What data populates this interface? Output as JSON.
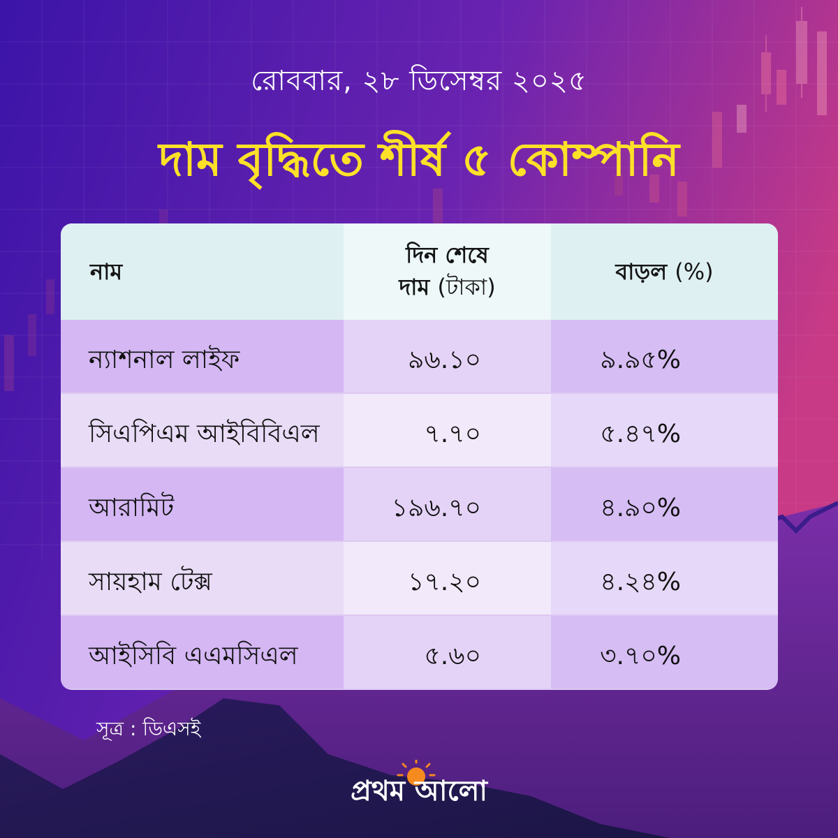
{
  "date": "রোববার, ২৮ ডিসেম্বর ২০২৫",
  "title": "দাম বৃদ্ধিতে শীর্ষ ৫ কোম্পানি",
  "table": {
    "headers": {
      "name": "নাম",
      "price_line1": "দিন শেষে",
      "price_line2": "দাম",
      "price_unit": "(টাকা)",
      "change": "বাড়ল",
      "change_unit": "(%)"
    },
    "rows": [
      {
        "name": "ন্যাশনাল লাইফ",
        "price": "৯৬.১০",
        "change": "৯.৯৫%"
      },
      {
        "name": "সিএপিএম আইবিবিএল",
        "price": "৭.৭০",
        "change": "৫.৪৭%"
      },
      {
        "name": "আরামিট",
        "price": "১৯৬.৭০",
        "change": "৪.৯০%"
      },
      {
        "name": "সায়হাম টেক্স",
        "price": "১৭.২০",
        "change": "৪.২৪%"
      },
      {
        "name": "আইসিবি এএমসিএল",
        "price": "৫.৬০",
        "change": "৩.৭০%"
      }
    ]
  },
  "source": "সূত্র : ডিএসই",
  "logo": {
    "text": "প্রথম আলো",
    "icon": "sun-icon",
    "sun_color": "#f58a1f"
  },
  "colors": {
    "title": "#fde128",
    "background_start": "#3b14a8",
    "background_end": "#c83a86"
  }
}
